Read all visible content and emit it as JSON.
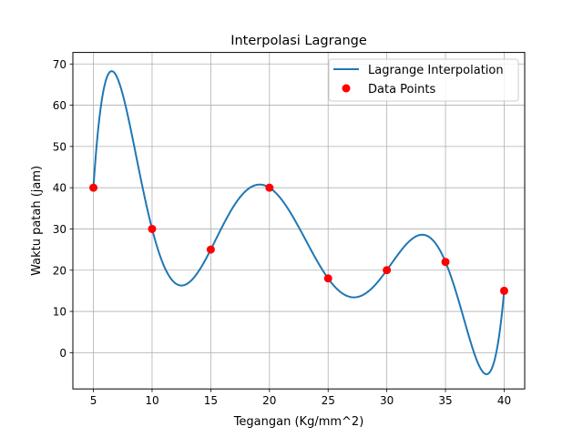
{
  "chart_data": {
    "type": "line",
    "title": "Interpolasi Lagrange",
    "xlabel": "Tegangan (Kg/mm^2)",
    "ylabel": "Waktu patah (jam)",
    "xlim": [
      3.25,
      41.75
    ],
    "ylim": [
      -8.8,
      72.8
    ],
    "xticks": [
      5,
      10,
      15,
      20,
      25,
      30,
      35,
      40
    ],
    "yticks": [
      0,
      10,
      20,
      30,
      40,
      50,
      60,
      70
    ],
    "grid": true,
    "legend_position": "top-right",
    "series": [
      {
        "name": "Lagrange Interpolation",
        "kind": "line",
        "color": "#1f77b4",
        "method": "lagrange-polynomial-through-data-points",
        "x_range": [
          5,
          40
        ]
      },
      {
        "name": "Data Points",
        "kind": "scatter",
        "color": "#ff0000",
        "x": [
          5,
          10,
          15,
          20,
          25,
          30,
          35,
          40
        ],
        "y": [
          40,
          30,
          25,
          40,
          18,
          20,
          22,
          15
        ]
      }
    ]
  }
}
